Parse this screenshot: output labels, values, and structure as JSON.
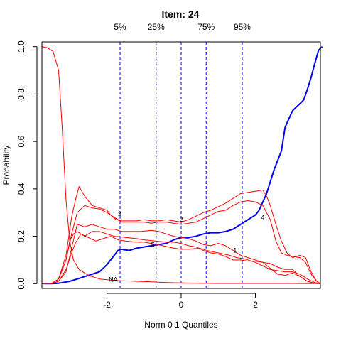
{
  "chart_data": {
    "type": "line",
    "title": "Item:  24",
    "xlabel": "Norm 0 1 Quantiles",
    "ylabel": "Probability",
    "xlim": [
      -3.75,
      3.75
    ],
    "ylim": [
      -0.02,
      1.02
    ],
    "xticks": [
      {
        "value": -2,
        "label": "-2"
      },
      {
        "value": 0,
        "label": "0"
      },
      {
        "value": 2,
        "label": "2"
      }
    ],
    "yticks": [
      {
        "value": 0.0,
        "label": "0.0"
      },
      {
        "value": 0.2,
        "label": "0.2"
      },
      {
        "value": 0.4,
        "label": "0.4"
      },
      {
        "value": 0.6,
        "label": "0.6"
      },
      {
        "value": 0.8,
        "label": "0.8"
      },
      {
        "value": 1.0,
        "label": "1.0"
      }
    ],
    "quantiles": [
      {
        "label": "5%",
        "x": -1.645
      },
      {
        "label": "25%",
        "x": -0.674
      },
      {
        "label": "",
        "x": 0.0
      },
      {
        "label": "75%",
        "x": 0.674
      },
      {
        "label": "95%",
        "x": 1.645
      }
    ],
    "grid": false,
    "colors": {
      "answer": "#0000ff",
      "distractor": "#ff0000",
      "quantile": "#0000ff"
    },
    "series": [
      {
        "name": "",
        "color": "#0000ff",
        "width": 2,
        "points": [
          [
            -3.7,
            0.0
          ],
          [
            -3.5,
            0.0
          ],
          [
            -3.3,
            0.002
          ],
          [
            -3.0,
            0.01
          ],
          [
            -2.8,
            0.02
          ],
          [
            -2.6,
            0.03
          ],
          [
            -2.4,
            0.04
          ],
          [
            -2.2,
            0.05
          ],
          [
            -2.0,
            0.08
          ],
          [
            -1.8,
            0.12
          ],
          [
            -1.7,
            0.14
          ],
          [
            -1.6,
            0.145
          ],
          [
            -1.4,
            0.14
          ],
          [
            -1.2,
            0.15
          ],
          [
            -1.0,
            0.155
          ],
          [
            -0.8,
            0.16
          ],
          [
            -0.6,
            0.165
          ],
          [
            -0.4,
            0.17
          ],
          [
            -0.2,
            0.185
          ],
          [
            0.0,
            0.195
          ],
          [
            0.2,
            0.195
          ],
          [
            0.4,
            0.2
          ],
          [
            0.6,
            0.21
          ],
          [
            0.8,
            0.215
          ],
          [
            1.0,
            0.215
          ],
          [
            1.2,
            0.22
          ],
          [
            1.4,
            0.23
          ],
          [
            1.6,
            0.25
          ],
          [
            1.8,
            0.27
          ],
          [
            2.0,
            0.29
          ],
          [
            2.1,
            0.31
          ],
          [
            2.3,
            0.38
          ],
          [
            2.5,
            0.48
          ],
          [
            2.7,
            0.56
          ],
          [
            2.8,
            0.66
          ],
          [
            3.0,
            0.73
          ],
          [
            3.1,
            0.745
          ],
          [
            3.2,
            0.76
          ],
          [
            3.3,
            0.775
          ],
          [
            3.4,
            0.82
          ],
          [
            3.5,
            0.87
          ],
          [
            3.6,
            0.93
          ],
          [
            3.7,
            0.985
          ],
          [
            3.8,
            1.0
          ]
        ]
      },
      {
        "name": "",
        "color": "#ff0000",
        "width": 1,
        "points": [
          [
            -3.75,
            1.0
          ],
          [
            -3.6,
            0.995
          ],
          [
            -3.45,
            0.98
          ],
          [
            -3.3,
            0.9
          ],
          [
            -3.2,
            0.65
          ],
          [
            -3.1,
            0.35
          ],
          [
            -3.0,
            0.18
          ],
          [
            -2.9,
            0.1
          ],
          [
            -2.75,
            0.06
          ],
          [
            -2.5,
            0.035
          ],
          [
            -2.2,
            0.02
          ],
          [
            -1.9,
            0.015
          ],
          [
            -1.6,
            0.012
          ],
          [
            -1.2,
            0.01
          ],
          [
            -0.8,
            0.008
          ],
          [
            -0.4,
            0.005
          ],
          [
            0.0,
            0.003
          ],
          [
            0.5,
            0.002
          ],
          [
            1.0,
            0.001
          ],
          [
            2.0,
            0.001
          ],
          [
            3.0,
            0.001
          ],
          [
            3.75,
            0.0
          ]
        ]
      },
      {
        "name": "",
        "color": "#ff0000",
        "width": 1,
        "points": [
          [
            -3.75,
            0.0
          ],
          [
            -3.5,
            0.0
          ],
          [
            -3.3,
            0.01
          ],
          [
            -3.1,
            0.06
          ],
          [
            -2.95,
            0.13
          ],
          [
            -2.85,
            0.17
          ],
          [
            -2.7,
            0.21
          ],
          [
            -2.5,
            0.195
          ],
          [
            -2.3,
            0.18
          ],
          [
            -2.1,
            0.19
          ],
          [
            -1.9,
            0.2
          ],
          [
            -1.7,
            0.185
          ],
          [
            -1.5,
            0.18
          ],
          [
            -1.2,
            0.175
          ],
          [
            -1.0,
            0.175
          ],
          [
            -0.8,
            0.17
          ],
          [
            -0.5,
            0.16
          ],
          [
            -0.2,
            0.15
          ],
          [
            0.0,
            0.145
          ],
          [
            0.2,
            0.145
          ],
          [
            0.5,
            0.15
          ],
          [
            0.7,
            0.14
          ],
          [
            1.0,
            0.13
          ],
          [
            1.3,
            0.12
          ],
          [
            1.5,
            0.11
          ],
          [
            1.7,
            0.105
          ],
          [
            2.0,
            0.09
          ],
          [
            2.2,
            0.075
          ],
          [
            2.4,
            0.06
          ],
          [
            2.6,
            0.055
          ],
          [
            2.8,
            0.05
          ],
          [
            3.0,
            0.05
          ],
          [
            3.2,
            0.04
          ],
          [
            3.4,
            0.02
          ],
          [
            3.6,
            0.005
          ],
          [
            3.75,
            0.0
          ]
        ]
      },
      {
        "name": "",
        "color": "#ff0000",
        "width": 1,
        "points": [
          [
            -3.75,
            0.0
          ],
          [
            -3.5,
            0.0
          ],
          [
            -3.3,
            0.02
          ],
          [
            -3.1,
            0.1
          ],
          [
            -3.0,
            0.18
          ],
          [
            -2.9,
            0.21
          ],
          [
            -2.8,
            0.22
          ],
          [
            -2.6,
            0.2
          ],
          [
            -2.4,
            0.22
          ],
          [
            -2.2,
            0.22
          ],
          [
            -2.0,
            0.21
          ],
          [
            -1.8,
            0.2
          ],
          [
            -1.5,
            0.195
          ],
          [
            -1.2,
            0.19
          ],
          [
            -1.0,
            0.185
          ],
          [
            -0.7,
            0.18
          ],
          [
            -0.4,
            0.175
          ],
          [
            -0.2,
            0.175
          ],
          [
            0.0,
            0.17
          ],
          [
            0.2,
            0.16
          ],
          [
            0.4,
            0.155
          ],
          [
            0.6,
            0.14
          ],
          [
            0.8,
            0.13
          ],
          [
            1.0,
            0.125
          ],
          [
            1.2,
            0.115
          ],
          [
            1.4,
            0.1
          ],
          [
            1.6,
            0.1
          ],
          [
            1.8,
            0.095
          ],
          [
            2.0,
            0.095
          ],
          [
            2.2,
            0.09
          ],
          [
            2.4,
            0.085
          ],
          [
            2.6,
            0.07
          ],
          [
            2.8,
            0.06
          ],
          [
            3.0,
            0.06
          ],
          [
            3.2,
            0.03
          ],
          [
            3.4,
            0.01
          ],
          [
            3.6,
            0.002
          ],
          [
            3.75,
            0.0
          ]
        ]
      },
      {
        "name": "",
        "color": "#ff0000",
        "width": 1,
        "points": [
          [
            -3.75,
            0.0
          ],
          [
            -3.5,
            0.0
          ],
          [
            -3.3,
            0.01
          ],
          [
            -3.1,
            0.05
          ],
          [
            -2.95,
            0.15
          ],
          [
            -2.8,
            0.25
          ],
          [
            -2.6,
            0.24
          ],
          [
            -2.4,
            0.25
          ],
          [
            -2.2,
            0.24
          ],
          [
            -2.0,
            0.23
          ],
          [
            -1.8,
            0.23
          ],
          [
            -1.6,
            0.22
          ],
          [
            -1.4,
            0.22
          ],
          [
            -1.1,
            0.22
          ],
          [
            -0.8,
            0.225
          ],
          [
            -0.6,
            0.22
          ],
          [
            -0.4,
            0.21
          ],
          [
            -0.2,
            0.2
          ],
          [
            0.0,
            0.195
          ],
          [
            0.2,
            0.19
          ],
          [
            0.4,
            0.18
          ],
          [
            0.6,
            0.165
          ],
          [
            0.8,
            0.16
          ],
          [
            1.0,
            0.17
          ],
          [
            1.2,
            0.16
          ],
          [
            1.4,
            0.14
          ],
          [
            1.6,
            0.12
          ],
          [
            1.8,
            0.11
          ],
          [
            2.0,
            0.1
          ],
          [
            2.2,
            0.09
          ],
          [
            2.4,
            0.065
          ],
          [
            2.6,
            0.04
          ],
          [
            2.8,
            0.035
          ],
          [
            3.0,
            0.045
          ],
          [
            3.2,
            0.03
          ],
          [
            3.4,
            0.01
          ],
          [
            3.6,
            0.002
          ],
          [
            3.75,
            0.0
          ]
        ]
      },
      {
        "name": "",
        "color": "#ff0000",
        "width": 1,
        "points": [
          [
            -3.75,
            0.0
          ],
          [
            -3.5,
            0.0
          ],
          [
            -3.3,
            0.02
          ],
          [
            -3.1,
            0.12
          ],
          [
            -2.95,
            0.28
          ],
          [
            -2.85,
            0.35
          ],
          [
            -2.75,
            0.41
          ],
          [
            -2.6,
            0.37
          ],
          [
            -2.4,
            0.33
          ],
          [
            -2.2,
            0.32
          ],
          [
            -2.0,
            0.31
          ],
          [
            -1.9,
            0.29
          ],
          [
            -1.75,
            0.27
          ],
          [
            -1.6,
            0.265
          ],
          [
            -1.4,
            0.265
          ],
          [
            -1.2,
            0.265
          ],
          [
            -1.0,
            0.27
          ],
          [
            -0.8,
            0.265
          ],
          [
            -0.6,
            0.265
          ],
          [
            -0.4,
            0.27
          ],
          [
            -0.2,
            0.265
          ],
          [
            0.0,
            0.26
          ],
          [
            0.2,
            0.27
          ],
          [
            0.4,
            0.285
          ],
          [
            0.6,
            0.3
          ],
          [
            0.8,
            0.31
          ],
          [
            1.0,
            0.325
          ],
          [
            1.2,
            0.34
          ],
          [
            1.4,
            0.36
          ],
          [
            1.6,
            0.38
          ],
          [
            1.8,
            0.385
          ],
          [
            2.0,
            0.39
          ],
          [
            2.2,
            0.395
          ],
          [
            2.3,
            0.37
          ],
          [
            2.4,
            0.33
          ],
          [
            2.55,
            0.25
          ],
          [
            2.7,
            0.18
          ],
          [
            2.85,
            0.13
          ],
          [
            3.0,
            0.11
          ],
          [
            3.2,
            0.12
          ],
          [
            3.35,
            0.11
          ],
          [
            3.5,
            0.05
          ],
          [
            3.65,
            0.01
          ],
          [
            3.75,
            0.0
          ]
        ]
      },
      {
        "name": "",
        "color": "#ff0000",
        "width": 1,
        "points": [
          [
            -3.75,
            0.0
          ],
          [
            -3.5,
            0.0
          ],
          [
            -3.3,
            0.02
          ],
          [
            -3.1,
            0.1
          ],
          [
            -2.95,
            0.21
          ],
          [
            -2.8,
            0.3
          ],
          [
            -2.6,
            0.33
          ],
          [
            -2.4,
            0.32
          ],
          [
            -2.2,
            0.315
          ],
          [
            -2.0,
            0.3
          ],
          [
            -1.8,
            0.28
          ],
          [
            -1.6,
            0.26
          ],
          [
            -1.4,
            0.26
          ],
          [
            -1.2,
            0.26
          ],
          [
            -1.0,
            0.26
          ],
          [
            -0.8,
            0.255
          ],
          [
            -0.6,
            0.26
          ],
          [
            -0.4,
            0.26
          ],
          [
            -0.2,
            0.255
          ],
          [
            0.0,
            0.25
          ],
          [
            0.2,
            0.255
          ],
          [
            0.4,
            0.26
          ],
          [
            0.6,
            0.275
          ],
          [
            0.8,
            0.29
          ],
          [
            1.0,
            0.305
          ],
          [
            1.2,
            0.31
          ],
          [
            1.4,
            0.33
          ],
          [
            1.6,
            0.345
          ],
          [
            1.8,
            0.35
          ],
          [
            2.0,
            0.345
          ],
          [
            2.2,
            0.33
          ],
          [
            2.4,
            0.27
          ],
          [
            2.55,
            0.18
          ],
          [
            2.7,
            0.13
          ],
          [
            2.85,
            0.12
          ],
          [
            3.0,
            0.115
          ],
          [
            3.2,
            0.11
          ],
          [
            3.35,
            0.09
          ],
          [
            3.5,
            0.04
          ],
          [
            3.65,
            0.01
          ],
          [
            3.75,
            0.0
          ]
        ]
      }
    ],
    "curve_labels": [
      {
        "text": "NA",
        "x": -1.83,
        "y": 0.018
      },
      {
        "text": "3",
        "x": -1.66,
        "y": 0.295
      },
      {
        "text": "5",
        "x": -0.76,
        "y": 0.165
      },
      {
        "text": "2",
        "x": 0.0,
        "y": 0.27
      },
      {
        "text": "1",
        "x": 1.45,
        "y": 0.14
      },
      {
        "text": "4",
        "x": 2.2,
        "y": 0.28
      }
    ]
  }
}
